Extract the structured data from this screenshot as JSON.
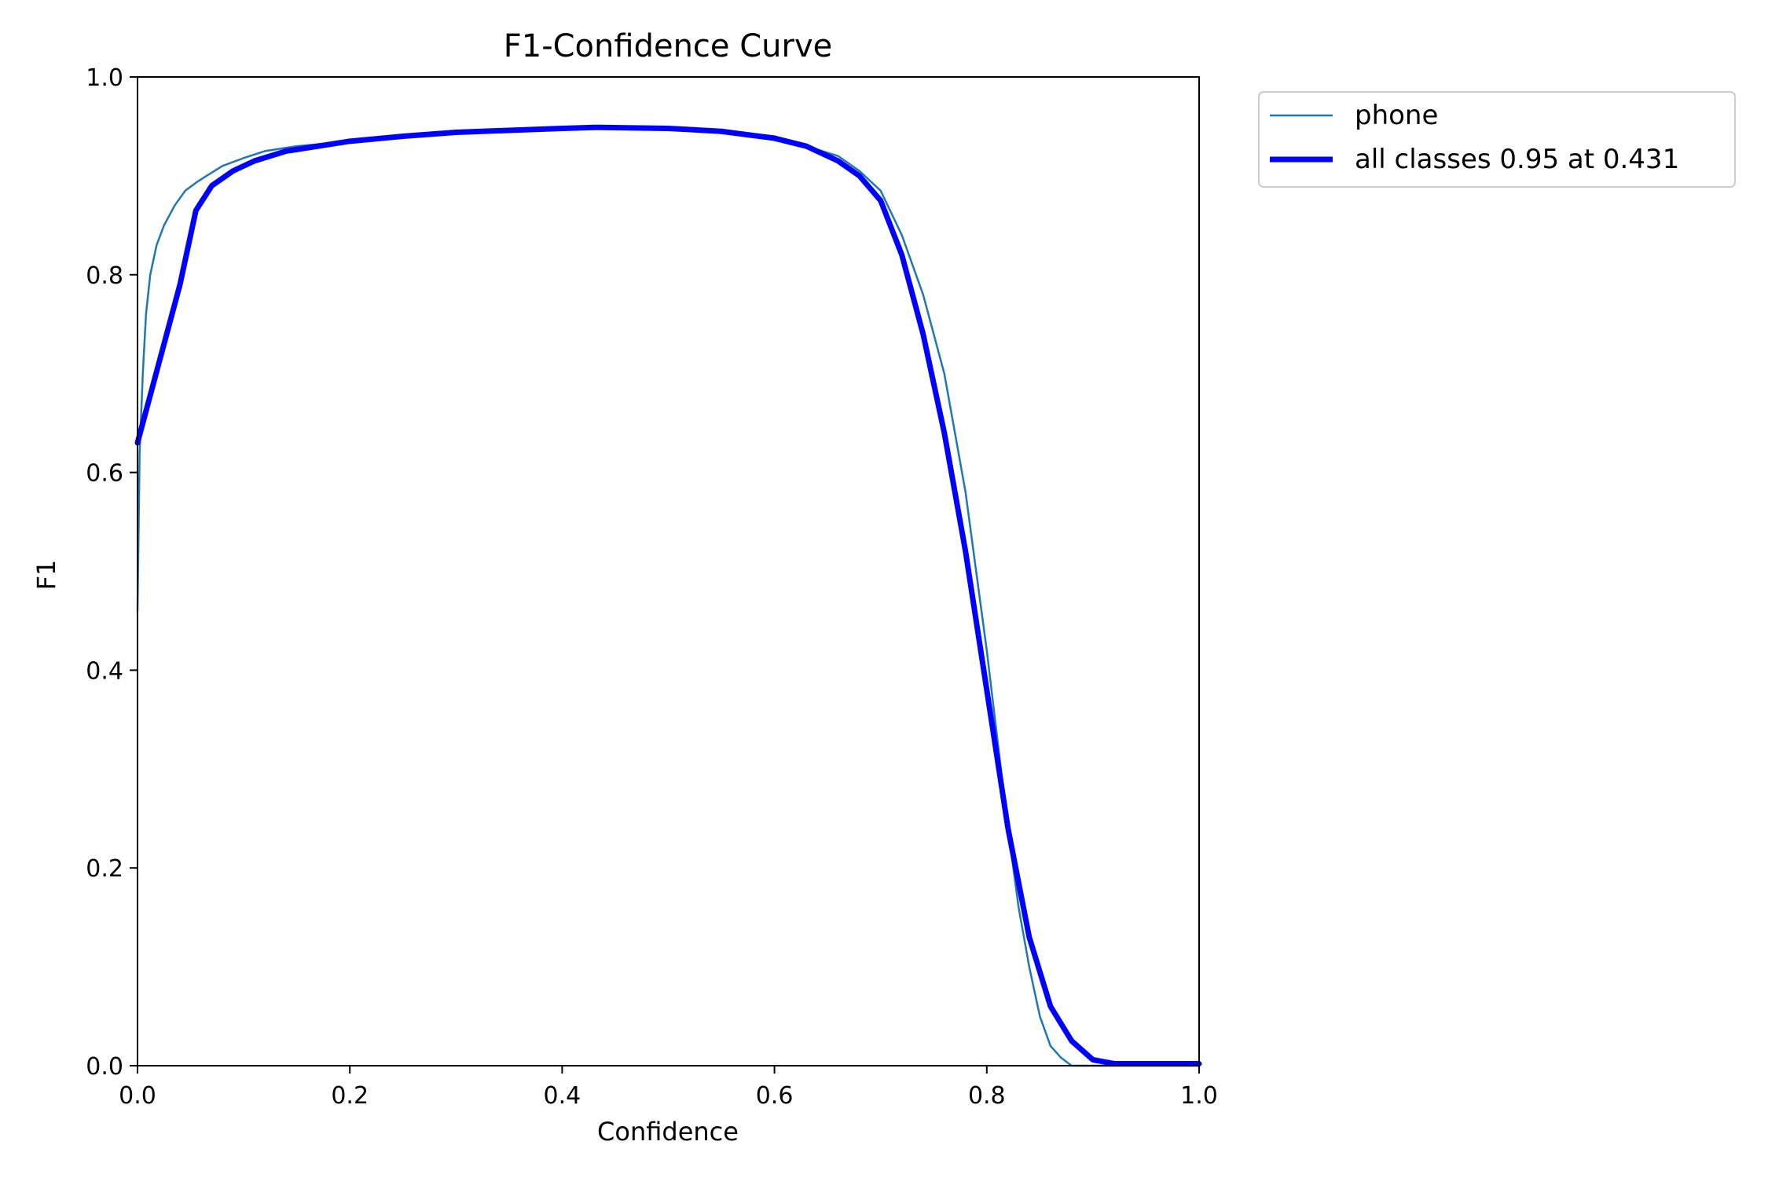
{
  "chart_data": {
    "type": "line",
    "title": "F1-Confidence Curve",
    "xlabel": "Confidence",
    "ylabel": "F1",
    "xlim": [
      0,
      1
    ],
    "ylim": [
      0,
      1
    ],
    "xticks": [
      "0.0",
      "0.2",
      "0.4",
      "0.6",
      "0.8",
      "1.0"
    ],
    "yticks": [
      "0.0",
      "0.2",
      "0.4",
      "0.6",
      "0.8",
      "1.0"
    ],
    "grid": false,
    "legend_position": "outside-top-right",
    "series": [
      {
        "name": "phone",
        "color": "#1f77b4",
        "x": [
          0.0,
          0.002,
          0.005,
          0.008,
          0.012,
          0.018,
          0.025,
          0.035,
          0.045,
          0.055,
          0.065,
          0.08,
          0.1,
          0.12,
          0.15,
          0.2,
          0.25,
          0.3,
          0.35,
          0.4,
          0.43,
          0.5,
          0.55,
          0.6,
          0.63,
          0.66,
          0.68,
          0.7,
          0.72,
          0.74,
          0.76,
          0.78,
          0.8,
          0.81,
          0.82,
          0.83,
          0.84,
          0.85,
          0.86,
          0.87,
          0.875,
          0.88,
          0.9,
          1.0
        ],
        "y": [
          0.46,
          0.62,
          0.7,
          0.76,
          0.8,
          0.83,
          0.85,
          0.87,
          0.885,
          0.893,
          0.9,
          0.91,
          0.918,
          0.925,
          0.93,
          0.935,
          0.94,
          0.943,
          0.946,
          0.948,
          0.949,
          0.948,
          0.946,
          0.94,
          0.93,
          0.92,
          0.905,
          0.885,
          0.84,
          0.78,
          0.7,
          0.58,
          0.42,
          0.33,
          0.24,
          0.16,
          0.1,
          0.05,
          0.02,
          0.008,
          0.004,
          0.0,
          0.0,
          0.0
        ]
      },
      {
        "name": "all classes 0.95 at 0.431",
        "color": "#0000ff",
        "x": [
          0.0,
          0.02,
          0.04,
          0.055,
          0.07,
          0.09,
          0.11,
          0.14,
          0.2,
          0.25,
          0.3,
          0.35,
          0.4,
          0.431,
          0.5,
          0.55,
          0.6,
          0.63,
          0.66,
          0.68,
          0.7,
          0.72,
          0.74,
          0.76,
          0.78,
          0.8,
          0.82,
          0.84,
          0.86,
          0.88,
          0.9,
          0.92,
          1.0
        ],
        "y": [
          0.63,
          0.71,
          0.79,
          0.865,
          0.89,
          0.905,
          0.915,
          0.925,
          0.935,
          0.94,
          0.944,
          0.946,
          0.948,
          0.949,
          0.948,
          0.945,
          0.938,
          0.93,
          0.915,
          0.9,
          0.875,
          0.82,
          0.74,
          0.64,
          0.52,
          0.38,
          0.24,
          0.13,
          0.06,
          0.025,
          0.006,
          0.002,
          0.002
        ]
      }
    ]
  }
}
